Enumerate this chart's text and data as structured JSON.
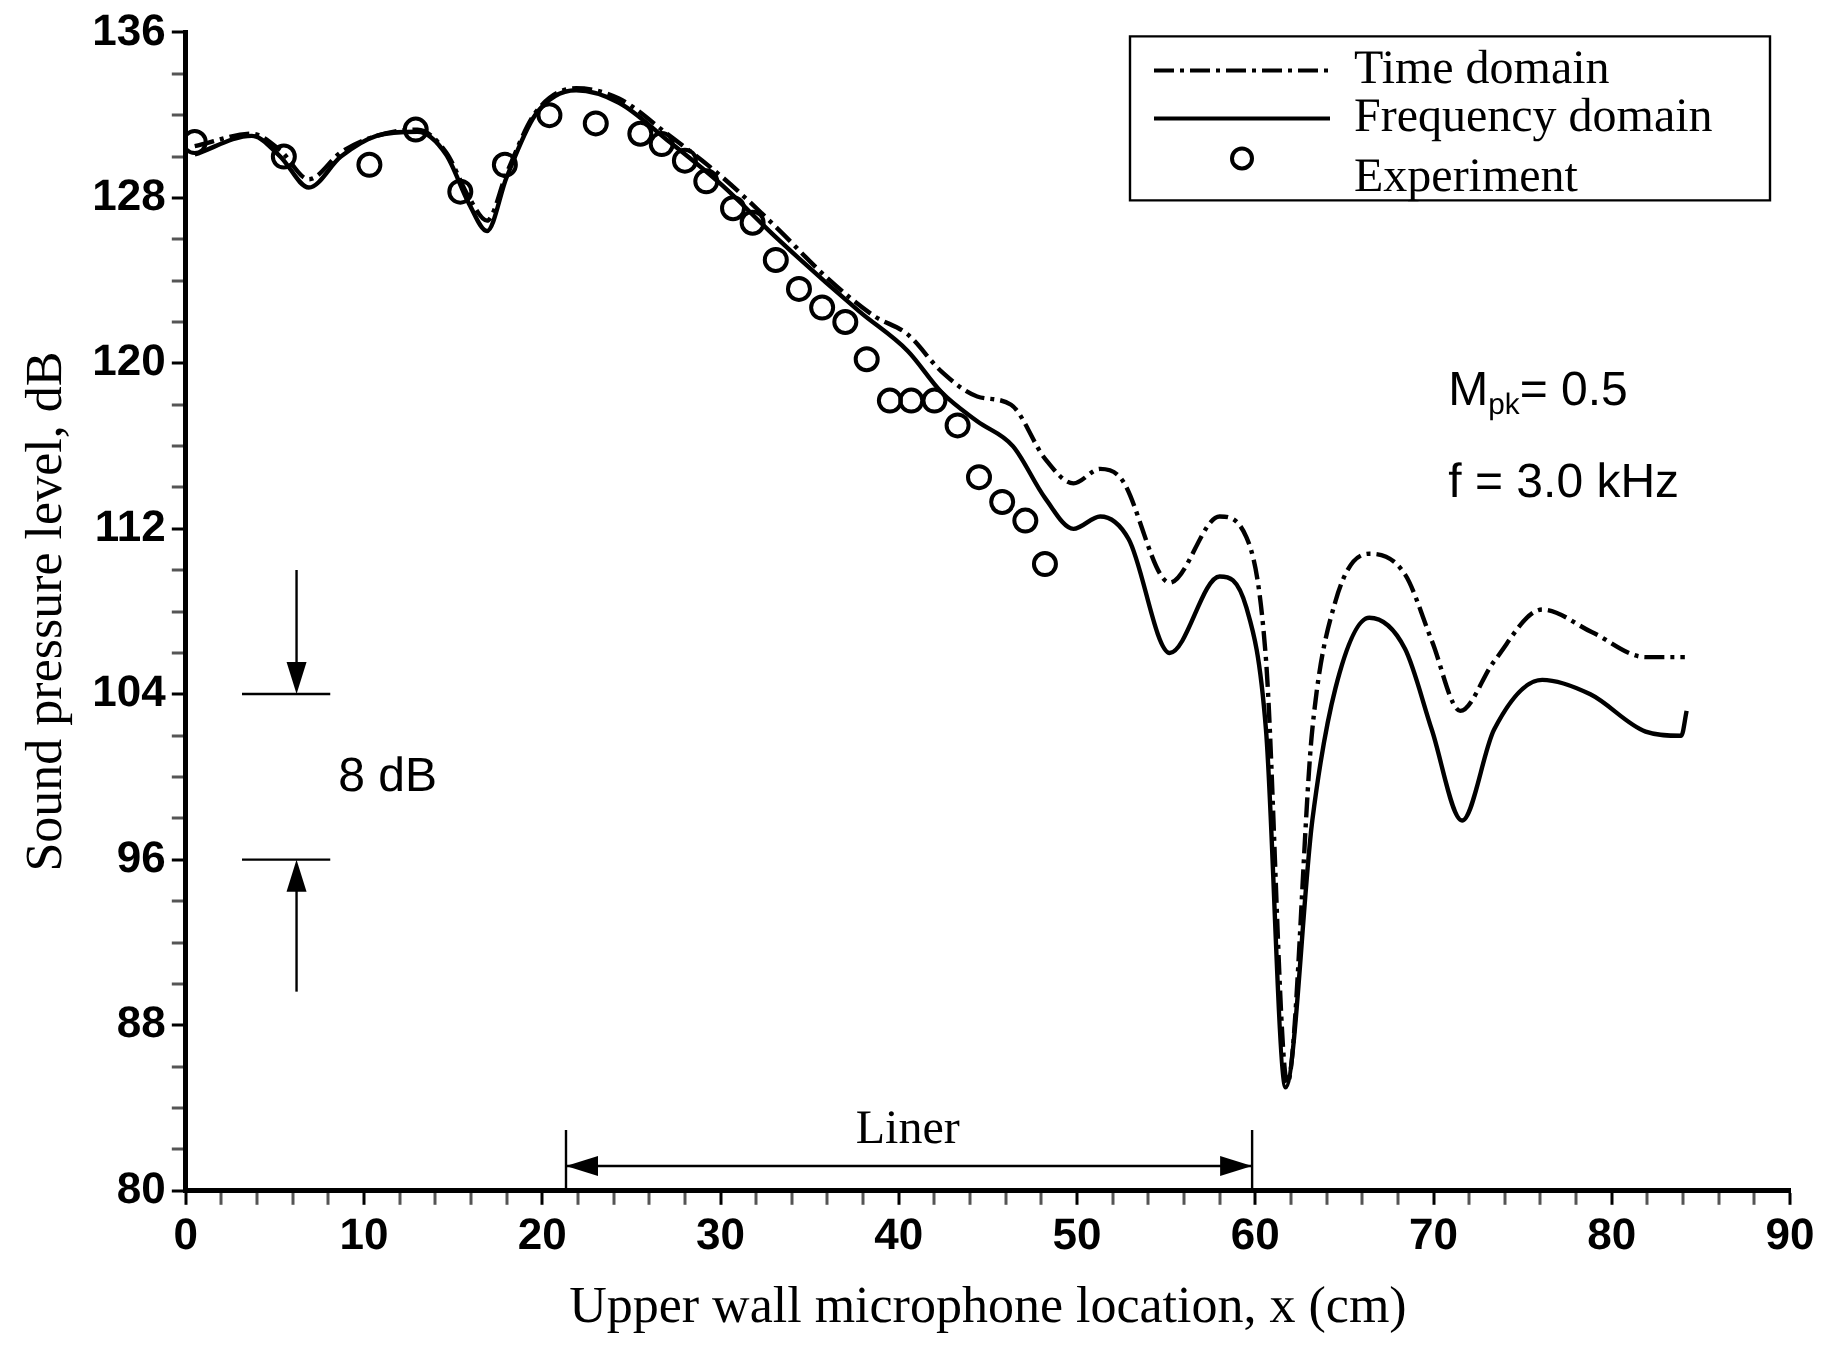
{
  "chart_data": {
    "type": "line",
    "xlabel": "Upper wall microphone location, x (cm)",
    "ylabel": "Sound pressure level, dB",
    "xlim": [
      0,
      90
    ],
    "ylim": [
      80,
      136
    ],
    "xticks": [
      0,
      {
        "value": 2,
        "label": null
      },
      {
        "value": 4,
        "label": null
      },
      {
        "value": 6,
        "label": null
      },
      {
        "value": 8,
        "label": null
      },
      10,
      {
        "value": 12,
        "label": null
      },
      {
        "value": 14,
        "label": null
      },
      {
        "value": 16,
        "label": null
      },
      {
        "value": 18,
        "label": null
      },
      20,
      {
        "value": 22,
        "label": null
      },
      {
        "value": 24,
        "label": null
      },
      {
        "value": 26,
        "label": null
      },
      {
        "value": 28,
        "label": null
      },
      30,
      {
        "value": 32,
        "label": null
      },
      {
        "value": 34,
        "label": null
      },
      {
        "value": 36,
        "label": null
      },
      {
        "value": 38,
        "label": null
      },
      40,
      {
        "value": 42,
        "label": null
      },
      {
        "value": 44,
        "label": null
      },
      {
        "value": 46,
        "label": null
      },
      {
        "value": 48,
        "label": null
      },
      50,
      {
        "value": 52,
        "label": null
      },
      {
        "value": 54,
        "label": null
      },
      {
        "value": 56,
        "label": null
      },
      {
        "value": 58,
        "label": null
      },
      60,
      {
        "value": 62,
        "label": null
      },
      {
        "value": 64,
        "label": null
      },
      {
        "value": 66,
        "label": null
      },
      {
        "value": 68,
        "label": null
      },
      70,
      {
        "value": 72,
        "label": null
      },
      {
        "value": 74,
        "label": null
      },
      {
        "value": 76,
        "label": null
      },
      {
        "value": 78,
        "label": null
      },
      80,
      {
        "value": 82,
        "label": null
      },
      {
        "value": 84,
        "label": null
      },
      {
        "value": 86,
        "label": null
      },
      {
        "value": 88,
        "label": null
      },
      90
    ],
    "yticks": [
      80,
      {
        "value": 82,
        "label": null
      },
      {
        "value": 84,
        "label": null
      },
      {
        "value": 86,
        "label": null
      },
      88,
      {
        "value": 90,
        "label": null
      },
      {
        "value": 92,
        "label": null
      },
      {
        "value": 94,
        "label": null
      },
      96,
      {
        "value": 98,
        "label": null
      },
      {
        "value": 100,
        "label": null
      },
      {
        "value": 102,
        "label": null
      },
      104,
      {
        "value": 106,
        "label": null
      },
      {
        "value": 108,
        "label": null
      },
      {
        "value": 110,
        "label": null
      },
      112,
      {
        "value": 114,
        "label": null
      },
      {
        "value": 116,
        "label": null
      },
      {
        "value": 118,
        "label": null
      },
      120,
      {
        "value": 122,
        "label": null
      },
      {
        "value": 124,
        "label": null
      },
      {
        "value": 126,
        "label": null
      },
      128,
      {
        "value": 130,
        "label": null
      },
      {
        "value": 132,
        "label": null
      },
      {
        "value": 134,
        "label": null
      },
      136
    ],
    "grid": false,
    "legend": "top right",
    "series": [
      {
        "name": "Time domain",
        "type": "line",
        "color": "#000000",
        "line_style": "dashed",
        "marker": "none",
        "x": [
          0.5,
          3.7,
          5.3,
          6.9,
          8.7,
          10.7,
          13.0,
          14.6,
          15.9,
          16.9,
          18.0,
          19.6,
          21.9,
          24.3,
          27.0,
          30.1,
          33.1,
          35.9,
          38.6,
          40.5,
          42.4,
          44.4,
          46.3,
          48.2,
          49.8,
          51.3,
          52.5,
          55.2,
          58.0,
          59.5,
          60.6,
          61.8,
          63.2,
          64.5,
          66.4,
          68.4,
          69.9,
          71.5,
          73.4,
          76.1,
          78.9,
          81.9,
          84.1
        ],
        "values": [
          130.5,
          131.1,
          130.3,
          128.9,
          130.2,
          131.0,
          131.3,
          130.2,
          128.0,
          126.9,
          129.2,
          132.1,
          133.3,
          132.8,
          131.1,
          129.0,
          126.6,
          124.2,
          122.3,
          121.4,
          119.6,
          118.4,
          118.0,
          115.4,
          114.2,
          114.9,
          114.4,
          109.4,
          112.6,
          111.6,
          105.7,
          85.2,
          102.3,
          108.5,
          110.8,
          109.8,
          106.6,
          103.2,
          105.6,
          108.1,
          107.0,
          105.8,
          105.8
        ]
      },
      {
        "name": "Frequency domain",
        "type": "line",
        "color": "#000000",
        "line_style": "solid",
        "marker": "none",
        "x": [
          0.5,
          3.7,
          5.3,
          6.9,
          8.7,
          10.7,
          13.0,
          14.6,
          15.9,
          16.9,
          18.0,
          19.6,
          21.9,
          24.3,
          27.0,
          30.1,
          33.1,
          37.8,
          40.5,
          42.4,
          44.4,
          46.4,
          48.2,
          49.8,
          51.3,
          52.9,
          55.2,
          58.0,
          59.5,
          60.6,
          61.7,
          63.2,
          64.5,
          66.4,
          68.4,
          69.9,
          71.6,
          73.4,
          76.1,
          78.8,
          81.9,
          83.9,
          84.2
        ],
        "values": [
          130.1,
          131.0,
          130.0,
          128.5,
          130.0,
          131.0,
          131.2,
          130.1,
          127.7,
          126.4,
          129.0,
          132.0,
          133.2,
          132.6,
          130.8,
          128.6,
          126.1,
          122.5,
          120.6,
          118.6,
          117.2,
          116.0,
          113.5,
          112.0,
          112.6,
          111.5,
          106.0,
          109.7,
          108.2,
          102.3,
          85.0,
          97.9,
          104.3,
          107.7,
          106.2,
          102.3,
          97.9,
          102.3,
          104.7,
          104.0,
          102.2,
          102.0,
          103.2
        ]
      },
      {
        "name": "Experiment",
        "type": "scatter",
        "color": "#000000",
        "marker": "circle",
        "x": [
          0.5,
          5.5,
          10.3,
          12.9,
          15.4,
          17.9,
          20.4,
          23.0,
          25.5,
          26.7,
          28.0,
          29.2,
          30.7,
          31.8,
          33.1,
          34.4,
          35.7,
          37.0,
          38.2,
          39.5,
          40.7,
          42.0,
          43.3,
          44.5,
          45.8,
          47.1,
          48.2
        ],
        "values": [
          130.7,
          130.0,
          129.6,
          131.3,
          128.3,
          129.6,
          132.0,
          131.6,
          131.1,
          130.6,
          129.8,
          128.8,
          127.5,
          126.8,
          125.0,
          123.6,
          122.7,
          122.0,
          120.2,
          118.2,
          118.2,
          118.2,
          117.0,
          114.5,
          113.3,
          112.4,
          110.3
        ]
      }
    ],
    "annotations": [
      "M$_{pk}$= 0.5",
      "f = 3.0 kHz",
      "8 dB",
      "Liner"
    ]
  }
}
